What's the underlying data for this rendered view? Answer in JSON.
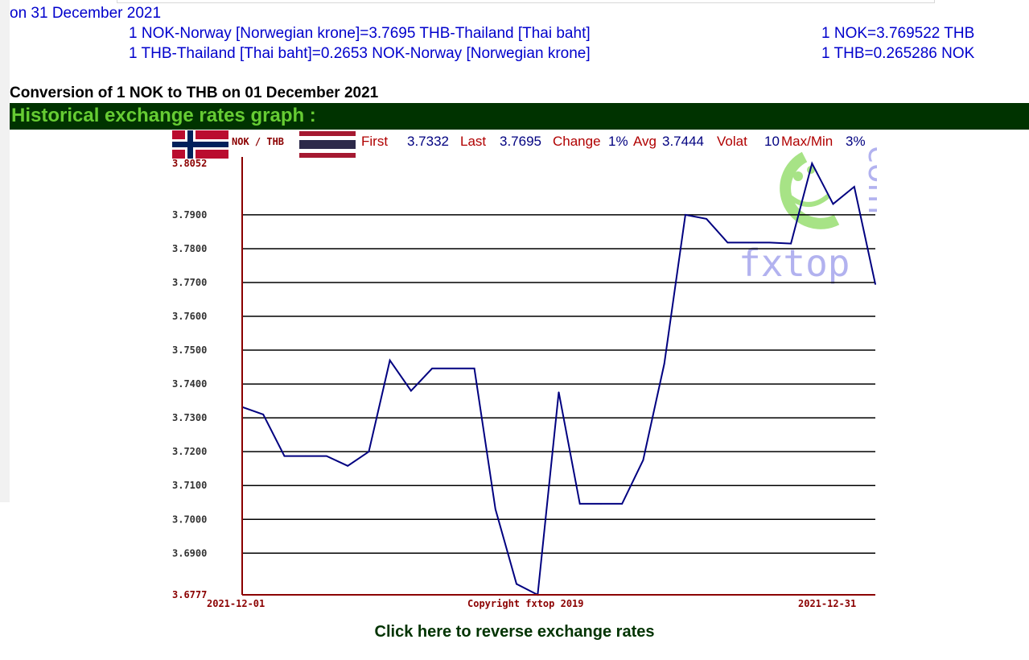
{
  "date_line": "on 31 December 2021",
  "rates": [
    {
      "text": "1 NOK-Norway [Norwegian krone]=3.7695 THB-Thailand [Thai baht]",
      "short": "1 NOK=3.769522 THB"
    },
    {
      "text": "1 THB-Thailand [Thai baht]=0.2653 NOK-Norway [Norwegian krone]",
      "short": "1 THB=0.265286 NOK"
    }
  ],
  "conversion_title": "Conversion of 1 NOK to THB on 01 December 2021",
  "historical_title": "Historical exchange rates graph :",
  "reverse_link": "Click here to reverse exchange rates",
  "chart_data": {
    "type": "line",
    "pair_label": "NOK / THB",
    "stats": {
      "first_label": "First",
      "first": "3.7332",
      "last_label": "Last",
      "last": "3.7695",
      "change_label": "Change",
      "change": "1%",
      "avg_label": "Avg",
      "avg": "3.7444",
      "volat_label": "Volat",
      "volat": "10",
      "maxmin_label": "Max/Min",
      "maxmin": "3%"
    },
    "x": [
      "2021-12-01",
      "2021-12-02",
      "2021-12-03",
      "2021-12-04",
      "2021-12-05",
      "2021-12-06",
      "2021-12-07",
      "2021-12-08",
      "2021-12-09",
      "2021-12-10",
      "2021-12-11",
      "2021-12-12",
      "2021-12-13",
      "2021-12-14",
      "2021-12-15",
      "2021-12-16",
      "2021-12-17",
      "2021-12-18",
      "2021-12-19",
      "2021-12-20",
      "2021-12-21",
      "2021-12-22",
      "2021-12-23",
      "2021-12-24",
      "2021-12-25",
      "2021-12-26",
      "2021-12-27",
      "2021-12-28",
      "2021-12-29",
      "2021-12-30",
      "2021-12-31"
    ],
    "values": [
      3.7332,
      3.731,
      3.7187,
      3.7187,
      3.7187,
      3.7158,
      3.72,
      3.747,
      3.738,
      3.7446,
      3.7446,
      3.7446,
      3.703,
      3.6809,
      3.6777,
      3.7376,
      3.7046,
      3.7046,
      3.7046,
      3.7175,
      3.746,
      3.79,
      3.7888,
      3.7818,
      3.7818,
      3.7818,
      3.7815,
      3.8052,
      3.7932,
      3.7983,
      3.7695
    ],
    "ylim": [
      3.6777,
      3.8052
    ],
    "yticks": [
      "3.8052",
      "3.7900",
      "3.7800",
      "3.7700",
      "3.7600",
      "3.7500",
      "3.7400",
      "3.7300",
      "3.7200",
      "3.7100",
      "3.7000",
      "3.6900",
      "3.6777"
    ],
    "xtick_first": "2021-12-01",
    "xtick_last": "2021-12-31",
    "copyright": "Copyright fxtop 2019",
    "watermark": "fxtop",
    "watermark_side": "com",
    "grid": true,
    "colors": {
      "line": "#000080",
      "axis": "#8b0000",
      "grid": "#000000",
      "label_red": "#b00000",
      "value_blue": "#000080",
      "watermark_green": "#9ee07a",
      "watermark_purple": "#aaaaee"
    }
  }
}
